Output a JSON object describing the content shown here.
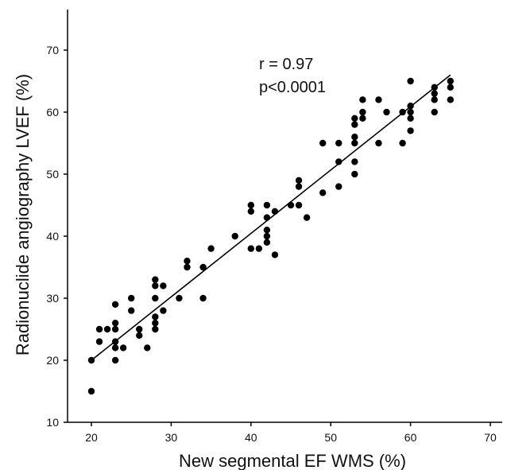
{
  "chart_data": {
    "type": "scatter",
    "title": "",
    "xlabel": "New segmental EF WMS (%)",
    "ylabel": "Radionuclide angiography LVEF (%)",
    "xlim": [
      17,
      72
    ],
    "ylim": [
      10,
      75
    ],
    "xticks": [
      20,
      30,
      40,
      50,
      60,
      70
    ],
    "yticks": [
      10,
      20,
      30,
      40,
      50,
      60,
      70
    ],
    "grid": false,
    "annotations": [
      "r = 0.97",
      "p<0.0001"
    ],
    "regression_line": {
      "x": [
        20,
        65
      ],
      "y": [
        20,
        66
      ]
    },
    "points": [
      [
        20,
        15
      ],
      [
        20,
        20
      ],
      [
        21,
        23
      ],
      [
        21,
        25
      ],
      [
        22,
        25
      ],
      [
        23,
        20
      ],
      [
        23,
        22
      ],
      [
        23,
        23
      ],
      [
        23,
        25
      ],
      [
        23,
        26
      ],
      [
        23,
        29
      ],
      [
        24,
        22
      ],
      [
        25,
        28
      ],
      [
        25,
        30
      ],
      [
        26,
        24
      ],
      [
        26,
        25
      ],
      [
        27,
        22
      ],
      [
        28,
        25
      ],
      [
        28,
        26
      ],
      [
        28,
        27
      ],
      [
        28,
        30
      ],
      [
        28,
        32
      ],
      [
        28,
        33
      ],
      [
        29,
        28
      ],
      [
        29,
        32
      ],
      [
        31,
        30
      ],
      [
        32,
        35
      ],
      [
        32,
        36
      ],
      [
        34,
        30
      ],
      [
        34,
        35
      ],
      [
        35,
        38
      ],
      [
        38,
        40
      ],
      [
        40,
        38
      ],
      [
        40,
        44
      ],
      [
        40,
        45
      ],
      [
        41,
        38
      ],
      [
        42,
        39
      ],
      [
        42,
        40
      ],
      [
        42,
        41
      ],
      [
        42,
        43
      ],
      [
        42,
        45
      ],
      [
        43,
        37
      ],
      [
        43,
        44
      ],
      [
        45,
        45
      ],
      [
        46,
        45
      ],
      [
        46,
        48
      ],
      [
        46,
        49
      ],
      [
        47,
        43
      ],
      [
        49,
        47
      ],
      [
        49,
        55
      ],
      [
        51,
        48
      ],
      [
        51,
        52
      ],
      [
        51,
        55
      ],
      [
        53,
        50
      ],
      [
        53,
        52
      ],
      [
        53,
        55
      ],
      [
        53,
        56
      ],
      [
        53,
        58
      ],
      [
        53,
        59
      ],
      [
        54,
        59
      ],
      [
        54,
        60
      ],
      [
        54,
        62
      ],
      [
        56,
        55
      ],
      [
        56,
        62
      ],
      [
        57,
        60
      ],
      [
        59,
        55
      ],
      [
        59,
        60
      ],
      [
        60,
        57
      ],
      [
        60,
        59
      ],
      [
        60,
        60
      ],
      [
        60,
        61
      ],
      [
        60,
        65
      ],
      [
        63,
        60
      ],
      [
        63,
        62
      ],
      [
        63,
        63
      ],
      [
        63,
        64
      ],
      [
        65,
        62
      ],
      [
        65,
        64
      ],
      [
        65,
        65
      ]
    ]
  }
}
